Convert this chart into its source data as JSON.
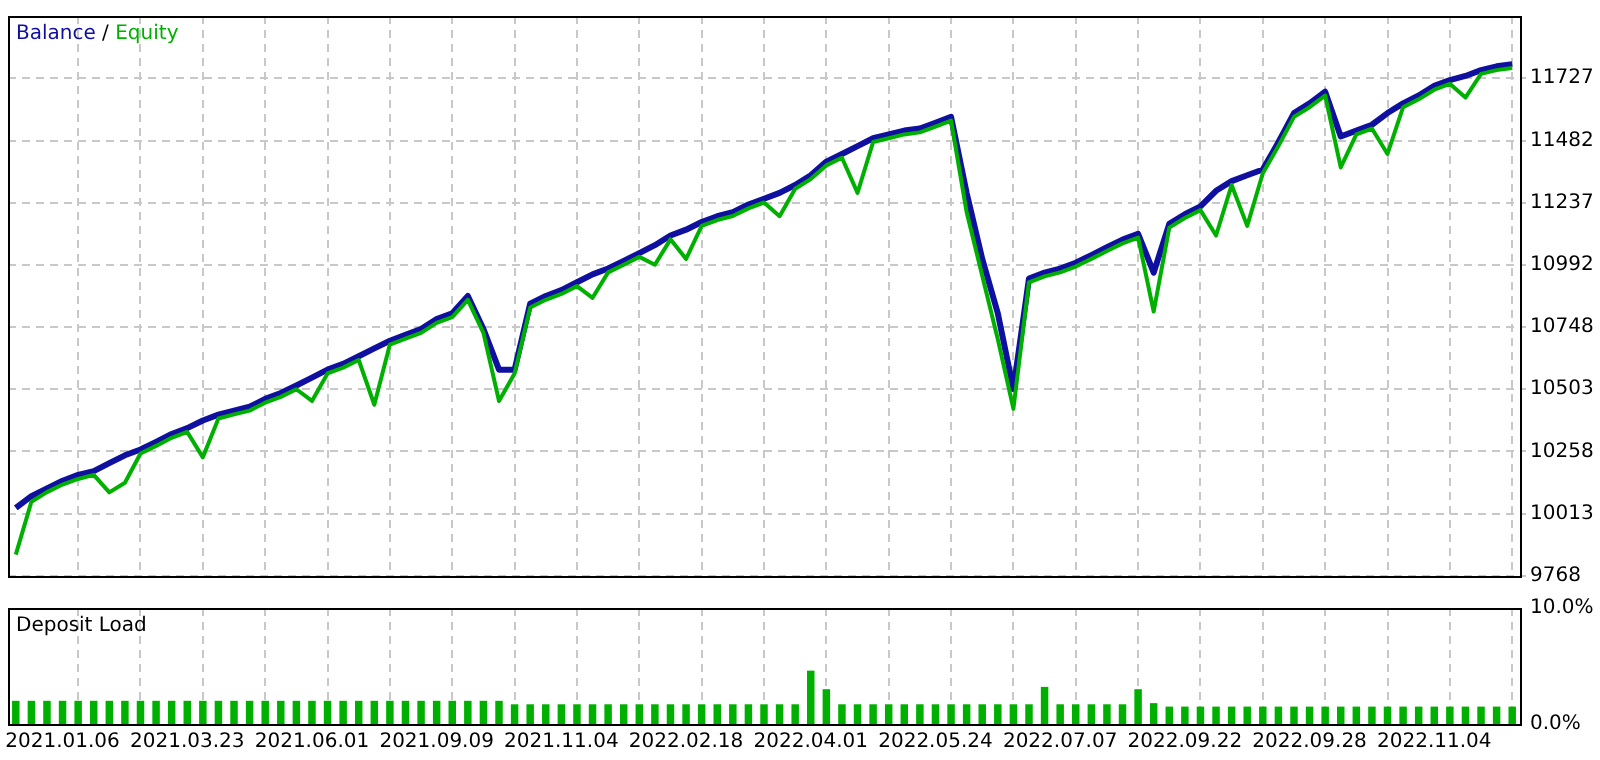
{
  "chart_data": [
    {
      "type": "line",
      "legend": "top left",
      "legend_title": "/",
      "grid": true,
      "tick_labels": "y",
      "categories": [
        null,
        null,
        null,
        "2021.01.06",
        null,
        null,
        null,
        null,
        null,
        null,
        null,
        "2021.03.23",
        null,
        null,
        null,
        null,
        null,
        null,
        null,
        "2021.06.01",
        null,
        null,
        null,
        null,
        null,
        null,
        null,
        "2021.09.09",
        null,
        null,
        null,
        null,
        null,
        null,
        null,
        "2021.11.04",
        null,
        null,
        null,
        null,
        null,
        null,
        null,
        "2022.02.18",
        null,
        null,
        null,
        null,
        null,
        null,
        null,
        "2022.04.01",
        null,
        null,
        null,
        null,
        null,
        null,
        null,
        "2022.05.24",
        null,
        null,
        null,
        null,
        null,
        null,
        null,
        "2022.07.07",
        null,
        null,
        null,
        null,
        null,
        null,
        null,
        "2022.09.22",
        null,
        null,
        null,
        null,
        null,
        null,
        null,
        "2022.09.28",
        null,
        null,
        null,
        null,
        null,
        null,
        null,
        "2022.11.04",
        null,
        null,
        null,
        null,
        null
      ],
      "ylim": [
        9768,
        11972
      ],
      "yticks": [
        9768,
        10013,
        10258,
        10503,
        10748,
        10992,
        11237,
        11482,
        11727
      ],
      "series": [
        {
          "name": "Equity",
          "color": "#00b000",
          "values": [
            9852,
            10060,
            10098,
            10128,
            10150,
            10166,
            10097,
            10135,
            10250,
            10280,
            10312,
            10335,
            10235,
            10388,
            10404,
            10419,
            10450,
            10473,
            10503,
            10457,
            10565,
            10588,
            10618,
            10442,
            10679,
            10702,
            10725,
            10764,
            10787,
            10855,
            10725,
            10457,
            10565,
            10825,
            10855,
            10878,
            10909,
            10863,
            10963,
            10993,
            11024,
            10993,
            11093,
            11016,
            11146,
            11169,
            11185,
            11215,
            11238,
            11184,
            11292,
            11330,
            11384,
            11414,
            11276,
            11476,
            11491,
            11506,
            11514,
            11537,
            11560,
            11200,
            10950,
            10700,
            10426,
            10924,
            10947,
            10963,
            10986,
            11016,
            11047,
            11077,
            11100,
            10809,
            11139,
            11177,
            11208,
            11108,
            11307,
            11146,
            11353,
            11460,
            11575,
            11613,
            11659,
            11376,
            11506,
            11529,
            11429,
            11613,
            11644,
            11682,
            11705,
            11651,
            11744,
            11759,
            11767
          ]
        },
        {
          "name": "Balance",
          "color": "#1010a0",
          "values": [
            10036,
            10082,
            10113,
            10143,
            10166,
            10181,
            10212,
            10243,
            10266,
            10296,
            10327,
            10350,
            10380,
            10403,
            10419,
            10434,
            10465,
            10488,
            10518,
            10549,
            10580,
            10603,
            10633,
            10664,
            10694,
            10717,
            10740,
            10779,
            10802,
            10870,
            10740,
            10580,
            10580,
            10840,
            10870,
            10893,
            10924,
            10955,
            10978,
            11008,
            11039,
            11070,
            11108,
            11131,
            11161,
            11184,
            11200,
            11230,
            11253,
            11276,
            11307,
            11345,
            11399,
            11429,
            11460,
            11491,
            11506,
            11521,
            11529,
            11552,
            11575,
            11276,
            11016,
            10802,
            10503,
            10939,
            10962,
            10978,
            11001,
            11031,
            11062,
            11092,
            11115,
            10962,
            11154,
            11192,
            11223,
            11284,
            11322,
            11345,
            11368,
            11475,
            11590,
            11628,
            11674,
            11498,
            11521,
            11544,
            11590,
            11628,
            11659,
            11697,
            11720,
            11736,
            11759,
            11774,
            11782
          ]
        }
      ]
    },
    {
      "type": "bar",
      "title": "Deposit Load",
      "grid": "x",
      "color": "#00b000",
      "categories": [
        null,
        null,
        null,
        "2021.01.06",
        null,
        null,
        null,
        null,
        null,
        null,
        null,
        "2021.03.23",
        null,
        null,
        null,
        null,
        null,
        null,
        null,
        "2021.06.01",
        null,
        null,
        null,
        null,
        null,
        null,
        null,
        "2021.09.09",
        null,
        null,
        null,
        null,
        null,
        null,
        null,
        "2021.11.04",
        null,
        null,
        null,
        null,
        null,
        null,
        null,
        "2022.02.18",
        null,
        null,
        null,
        null,
        null,
        null,
        null,
        "2022.04.01",
        null,
        null,
        null,
        null,
        null,
        null,
        null,
        "2022.05.24",
        null,
        null,
        null,
        null,
        null,
        null,
        null,
        "2022.07.07",
        null,
        null,
        null,
        null,
        null,
        null,
        null,
        "2022.09.22",
        null,
        null,
        null,
        null,
        null,
        null,
        null,
        "2022.09.28",
        null,
        null,
        null,
        null,
        null,
        null,
        null,
        "2022.11.04",
        null,
        null,
        null,
        null,
        null
      ],
      "ylim": [
        0,
        10
      ],
      "yticks": [
        {
          "value": 0,
          "label": "0.0%"
        },
        {
          "value": 10,
          "label": "10.0%"
        }
      ],
      "values": [
        2,
        2,
        2,
        2,
        2,
        2,
        2,
        2,
        2,
        2,
        2,
        2,
        2,
        2,
        2,
        2,
        2,
        2,
        2,
        2,
        2,
        2,
        2,
        2,
        2,
        2,
        2,
        2,
        2,
        2,
        2,
        2,
        1.7,
        1.7,
        1.7,
        1.7,
        1.7,
        1.7,
        1.7,
        1.7,
        1.7,
        1.7,
        1.7,
        1.7,
        1.7,
        1.7,
        1.7,
        1.7,
        1.7,
        1.7,
        1.7,
        4.6,
        3,
        1.7,
        1.7,
        1.7,
        1.7,
        1.7,
        1.7,
        1.7,
        1.7,
        1.7,
        1.7,
        1.7,
        1.7,
        1.7,
        3.2,
        1.7,
        1.7,
        1.7,
        1.7,
        1.7,
        3,
        1.8,
        1.5,
        1.5,
        1.5,
        1.5,
        1.5,
        1.5,
        1.5,
        1.5,
        1.5,
        1.5,
        1.5,
        1.5,
        1.5,
        1.5,
        1.5,
        1.5,
        1.5,
        1.5,
        1.5,
        1.5,
        1.5,
        1.5,
        1.5
      ]
    }
  ]
}
